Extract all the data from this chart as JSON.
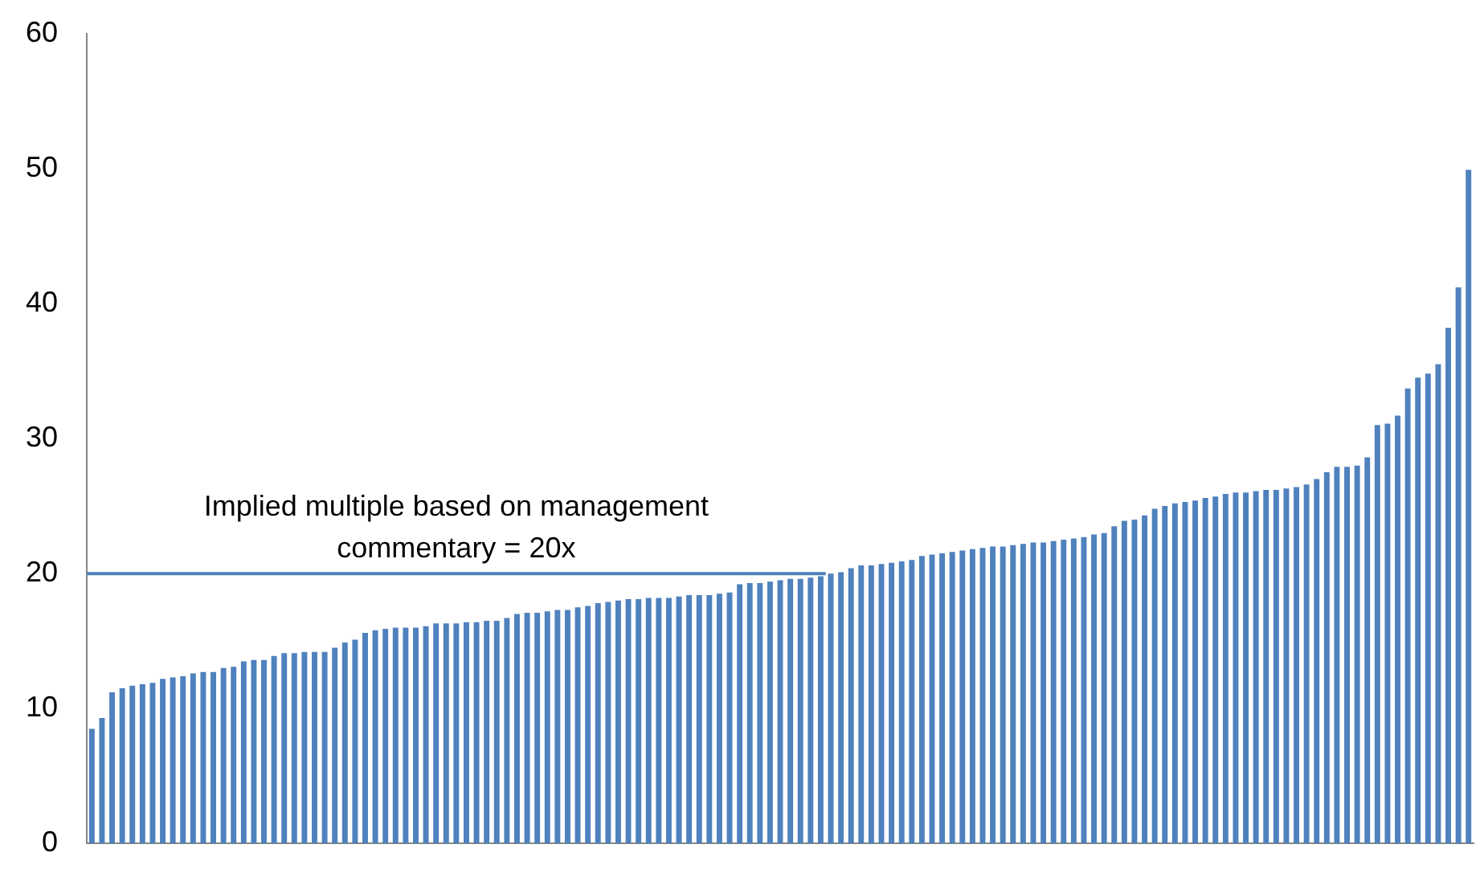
{
  "chart_data": {
    "type": "bar",
    "categories": [
      null,
      null,
      null,
      null,
      null,
      null,
      null,
      null,
      null,
      null,
      null,
      null,
      null,
      null,
      null,
      null,
      null,
      null,
      null,
      null,
      null,
      null,
      null,
      null,
      null,
      null,
      null,
      null,
      null,
      null,
      null,
      null,
      null,
      null,
      null,
      null,
      null,
      null,
      null,
      null,
      null,
      null,
      null,
      null,
      null,
      null,
      null,
      null,
      null,
      null,
      null,
      null,
      null,
      null,
      null,
      null,
      null,
      null,
      null,
      null,
      null,
      null,
      null,
      null,
      null,
      null,
      null,
      null,
      null,
      null,
      null,
      null,
      null,
      null,
      null,
      null,
      null,
      null,
      null,
      null,
      null,
      null,
      null,
      null,
      null,
      null,
      null,
      null,
      null,
      null,
      null,
      null,
      null,
      null,
      null,
      null,
      null,
      null,
      null,
      null,
      null,
      null,
      null,
      null,
      null,
      null,
      null,
      null,
      null,
      null,
      null,
      null,
      null,
      null,
      null,
      null,
      null,
      null,
      null,
      null,
      null,
      null,
      null,
      null,
      null,
      null,
      null,
      null,
      null,
      null,
      null,
      null,
      null,
      null,
      null,
      null,
      null
    ],
    "values": [
      8.5,
      9.3,
      11.2,
      11.5,
      11.7,
      11.8,
      11.9,
      12.2,
      12.3,
      12.4,
      12.6,
      12.7,
      12.7,
      13.0,
      13.1,
      13.5,
      13.6,
      13.6,
      13.9,
      14.1,
      14.1,
      14.2,
      14.2,
      14.2,
      14.5,
      14.9,
      15.1,
      15.6,
      15.8,
      15.9,
      16.0,
      16.0,
      16.0,
      16.1,
      16.3,
      16.3,
      16.3,
      16.4,
      16.4,
      16.5,
      16.5,
      16.7,
      17.0,
      17.1,
      17.1,
      17.2,
      17.3,
      17.3,
      17.5,
      17.6,
      17.8,
      17.9,
      18.0,
      18.1,
      18.1,
      18.2,
      18.2,
      18.2,
      18.3,
      18.4,
      18.4,
      18.4,
      18.5,
      18.6,
      19.2,
      19.3,
      19.3,
      19.4,
      19.5,
      19.6,
      19.6,
      19.7,
      19.8,
      20.0,
      20.1,
      20.4,
      20.6,
      20.6,
      20.7,
      20.8,
      20.9,
      21.0,
      21.3,
      21.4,
      21.5,
      21.6,
      21.7,
      21.8,
      21.9,
      22.0,
      22.0,
      22.1,
      22.2,
      22.3,
      22.3,
      22.4,
      22.5,
      22.6,
      22.7,
      22.9,
      23.0,
      23.5,
      23.9,
      24.0,
      24.3,
      24.8,
      25.0,
      25.2,
      25.3,
      25.4,
      25.6,
      25.7,
      25.9,
      26.0,
      26.0,
      26.1,
      26.2,
      26.2,
      26.3,
      26.4,
      26.6,
      27.0,
      27.5,
      27.9,
      27.9,
      28.0,
      28.6,
      31.0,
      31.1,
      31.7,
      33.7,
      34.5,
      34.8,
      35.5,
      38.2,
      41.2,
      49.9
    ],
    "color": "#4f81bd",
    "ylim": [
      0,
      60
    ],
    "yticks": [
      0,
      10,
      20,
      30,
      40,
      50,
      60
    ],
    "grid": false,
    "legend": false,
    "ref_lines": [
      {
        "axis": "y",
        "value": 20,
        "label": "Implied multiple based on management commentary = 20x",
        "color": "#4f81bd"
      }
    ]
  }
}
